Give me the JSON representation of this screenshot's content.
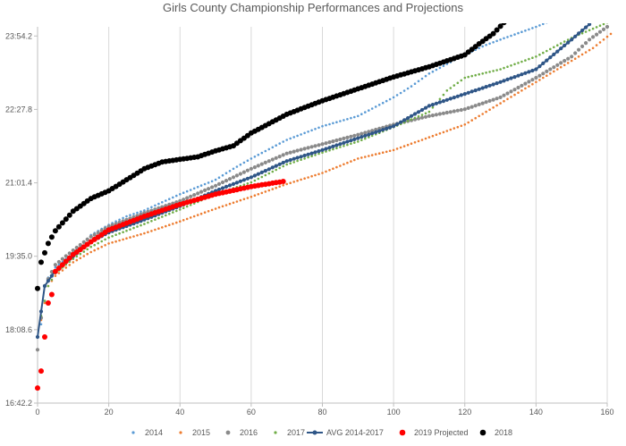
{
  "chart_data": {
    "type": "scatter",
    "title": "Girls County Championship Performances and Projections",
    "xlabel": "",
    "ylabel": "",
    "xlim": [
      0,
      160
    ],
    "x_ticks": [
      0,
      20,
      40,
      60,
      80,
      100,
      120,
      140,
      160
    ],
    "x_tick_labels": [
      "0",
      "20",
      "40",
      "60",
      "80",
      "100",
      "120",
      "140",
      "160"
    ],
    "ylim_seconds": [
      1002.2,
      1445
    ],
    "y_ticks_seconds": [
      1002.2,
      1088.6,
      1175,
      1261.4,
      1347.8,
      1434.2
    ],
    "y_tick_labels": [
      "16:42.2",
      "18:08.6",
      "19:35.0",
      "21:01.4",
      "22:27.8",
      "23:54.2"
    ],
    "grid": "vertical",
    "legend_position": "bottom",
    "series": [
      {
        "name": "2014",
        "color": "#5b9bd5",
        "marker": "small-dot",
        "anchors": [
          [
            1,
            1095
          ],
          [
            3,
            1150
          ],
          [
            5,
            1162
          ],
          [
            10,
            1178
          ],
          [
            15,
            1200
          ],
          [
            20,
            1212
          ],
          [
            25,
            1222
          ],
          [
            30,
            1229
          ],
          [
            40,
            1248
          ],
          [
            50,
            1265
          ],
          [
            55,
            1278
          ],
          [
            60,
            1290
          ],
          [
            70,
            1312
          ],
          [
            80,
            1328
          ],
          [
            90,
            1340
          ],
          [
            100,
            1362
          ],
          [
            105,
            1375
          ],
          [
            110,
            1390
          ],
          [
            118,
            1408
          ],
          [
            125,
            1422
          ],
          [
            130,
            1430
          ],
          [
            140,
            1445
          ],
          [
            143,
            1450
          ]
        ]
      },
      {
        "name": "2015",
        "color": "#ed7d31",
        "marker": "small-dot",
        "anchors": [
          [
            1,
            1100
          ],
          [
            3,
            1140
          ],
          [
            5,
            1152
          ],
          [
            10,
            1168
          ],
          [
            15,
            1180
          ],
          [
            20,
            1190
          ],
          [
            30,
            1202
          ],
          [
            40,
            1216
          ],
          [
            50,
            1231
          ],
          [
            60,
            1245
          ],
          [
            70,
            1260
          ],
          [
            80,
            1273
          ],
          [
            90,
            1290
          ],
          [
            100,
            1300
          ],
          [
            110,
            1315
          ],
          [
            120,
            1330
          ],
          [
            130,
            1355
          ],
          [
            140,
            1380
          ],
          [
            150,
            1405
          ],
          [
            156,
            1420
          ],
          [
            162,
            1440
          ]
        ]
      },
      {
        "name": "2016",
        "color": "#8a8a8a",
        "marker": "dot",
        "anchors": [
          [
            0,
            1065
          ],
          [
            2,
            1140
          ],
          [
            5,
            1165
          ],
          [
            10,
            1182
          ],
          [
            15,
            1198
          ],
          [
            20,
            1210
          ],
          [
            30,
            1226
          ],
          [
            40,
            1240
          ],
          [
            50,
            1258
          ],
          [
            60,
            1278
          ],
          [
            70,
            1296
          ],
          [
            80,
            1307
          ],
          [
            90,
            1318
          ],
          [
            100,
            1330
          ],
          [
            110,
            1340
          ],
          [
            120,
            1348
          ],
          [
            130,
            1362
          ],
          [
            140,
            1385
          ],
          [
            150,
            1410
          ],
          [
            155,
            1430
          ],
          [
            160,
            1445
          ]
        ]
      },
      {
        "name": "2017",
        "color": "#70ad47",
        "marker": "small-dot",
        "anchors": [
          [
            1,
            1105
          ],
          [
            3,
            1140
          ],
          [
            5,
            1155
          ],
          [
            10,
            1172
          ],
          [
            15,
            1186
          ],
          [
            20,
            1197
          ],
          [
            30,
            1213
          ],
          [
            40,
            1230
          ],
          [
            50,
            1248
          ],
          [
            60,
            1262
          ],
          [
            70,
            1283
          ],
          [
            80,
            1297
          ],
          [
            90,
            1310
          ],
          [
            100,
            1327
          ],
          [
            110,
            1345
          ],
          [
            115,
            1370
          ],
          [
            120,
            1385
          ],
          [
            130,
            1395
          ],
          [
            140,
            1410
          ],
          [
            150,
            1432
          ],
          [
            160,
            1450
          ]
        ]
      },
      {
        "name": "AVG 2014-2017",
        "color": "#2f5687",
        "marker": "line-marker",
        "anchors": [
          [
            0,
            1080
          ],
          [
            2,
            1140
          ],
          [
            5,
            1158
          ],
          [
            10,
            1175
          ],
          [
            15,
            1192
          ],
          [
            20,
            1203
          ],
          [
            30,
            1218
          ],
          [
            40,
            1234
          ],
          [
            50,
            1252
          ],
          [
            60,
            1268
          ],
          [
            70,
            1287
          ],
          [
            80,
            1300
          ],
          [
            90,
            1314
          ],
          [
            100,
            1328
          ],
          [
            110,
            1352
          ],
          [
            120,
            1366
          ],
          [
            130,
            1380
          ],
          [
            140,
            1395
          ],
          [
            150,
            1430
          ],
          [
            155,
            1448
          ]
        ]
      },
      {
        "name": "2019 Projected",
        "color": "#ff0000",
        "marker": "large-dot",
        "anchors": [
          [
            0,
            1020
          ],
          [
            1,
            1040
          ],
          [
            3,
            1120
          ],
          [
            4,
            1130
          ],
          [
            5,
            1157
          ],
          [
            10,
            1177
          ],
          [
            15,
            1192
          ],
          [
            20,
            1206
          ],
          [
            30,
            1222
          ],
          [
            40,
            1236
          ],
          [
            50,
            1248
          ],
          [
            60,
            1257
          ],
          [
            69,
            1263
          ]
        ]
      },
      {
        "name": "2018",
        "color": "#000000",
        "marker": "large-dot",
        "anchors": [
          [
            0,
            1137
          ],
          [
            1,
            1168
          ],
          [
            3,
            1190
          ],
          [
            5,
            1205
          ],
          [
            10,
            1228
          ],
          [
            15,
            1243
          ],
          [
            20,
            1252
          ],
          [
            25,
            1265
          ],
          [
            30,
            1278
          ],
          [
            35,
            1286
          ],
          [
            40,
            1289
          ],
          [
            45,
            1292
          ],
          [
            50,
            1299
          ],
          [
            55,
            1305
          ],
          [
            60,
            1320
          ],
          [
            70,
            1342
          ],
          [
            80,
            1358
          ],
          [
            90,
            1372
          ],
          [
            100,
            1386
          ],
          [
            110,
            1398
          ],
          [
            115,
            1405
          ],
          [
            120,
            1412
          ],
          [
            124,
            1425
          ],
          [
            128,
            1437
          ],
          [
            131,
            1450
          ]
        ]
      }
    ]
  }
}
